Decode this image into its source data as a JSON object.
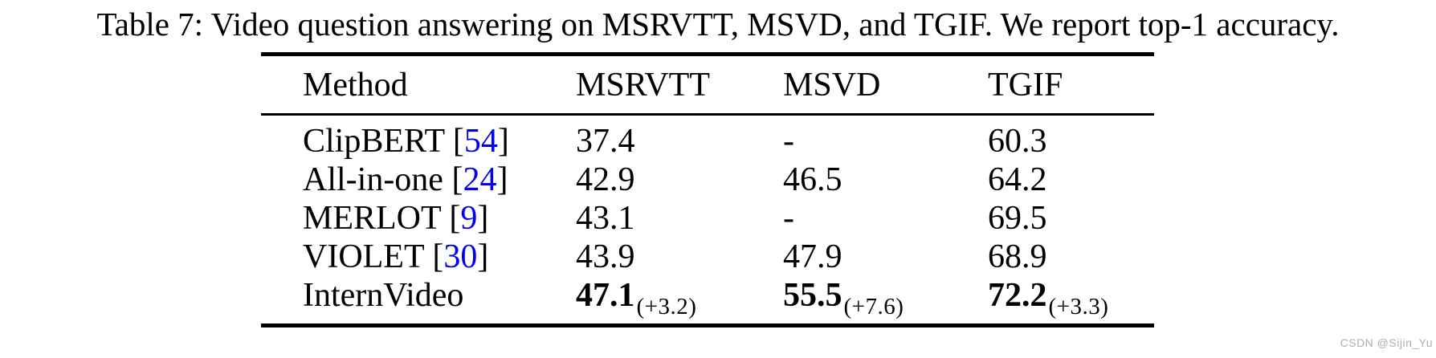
{
  "caption": {
    "text": "Table 7: Video question answering on MSRVTT, MSVD, and TGIF. We report top-1 accuracy."
  },
  "watermark": {
    "text": "CSDN @Sijin_Yu"
  },
  "colors": {
    "text": "#000000",
    "rule": "#000000",
    "citation_blue": "#0000EE",
    "watermark_gray": "#ABAEB2",
    "background": "#FFFFFF"
  },
  "chart_data": {
    "type": "table",
    "title": "Table 7: Video question answering on MSRVTT, MSVD, and TGIF. We report top-1 accuracy.",
    "columns": [
      "Method",
      "MSRVTT",
      "MSVD",
      "TGIF"
    ],
    "rows": [
      {
        "method": "ClipBERT",
        "cite_open": "[",
        "cite": "54",
        "cite_close": "]",
        "msrvtt": "37.4",
        "msvd": "-",
        "tgif": "60.3"
      },
      {
        "method": "All-in-one",
        "cite_open": "[",
        "cite": "24",
        "cite_close": "]",
        "msrvtt": "42.9",
        "msvd": "46.5",
        "tgif": "64.2"
      },
      {
        "method": "MERLOT",
        "cite_open": "[",
        "cite": "9",
        "cite_close": "]",
        "msrvtt": "43.1",
        "msvd": "-",
        "tgif": "69.5"
      },
      {
        "method": "VIOLET",
        "cite_open": "[",
        "cite": "30",
        "cite_close": "]",
        "msrvtt": "43.9",
        "msvd": "47.9",
        "tgif": "68.9"
      },
      {
        "method": "InternVideo",
        "bold": true,
        "msrvtt": "47.1",
        "msrvtt_delta": "(+3.2)",
        "msvd": "55.5",
        "msvd_delta": "(+7.6)",
        "tgif": "72.2",
        "tgif_delta": "(+3.3)"
      }
    ]
  }
}
